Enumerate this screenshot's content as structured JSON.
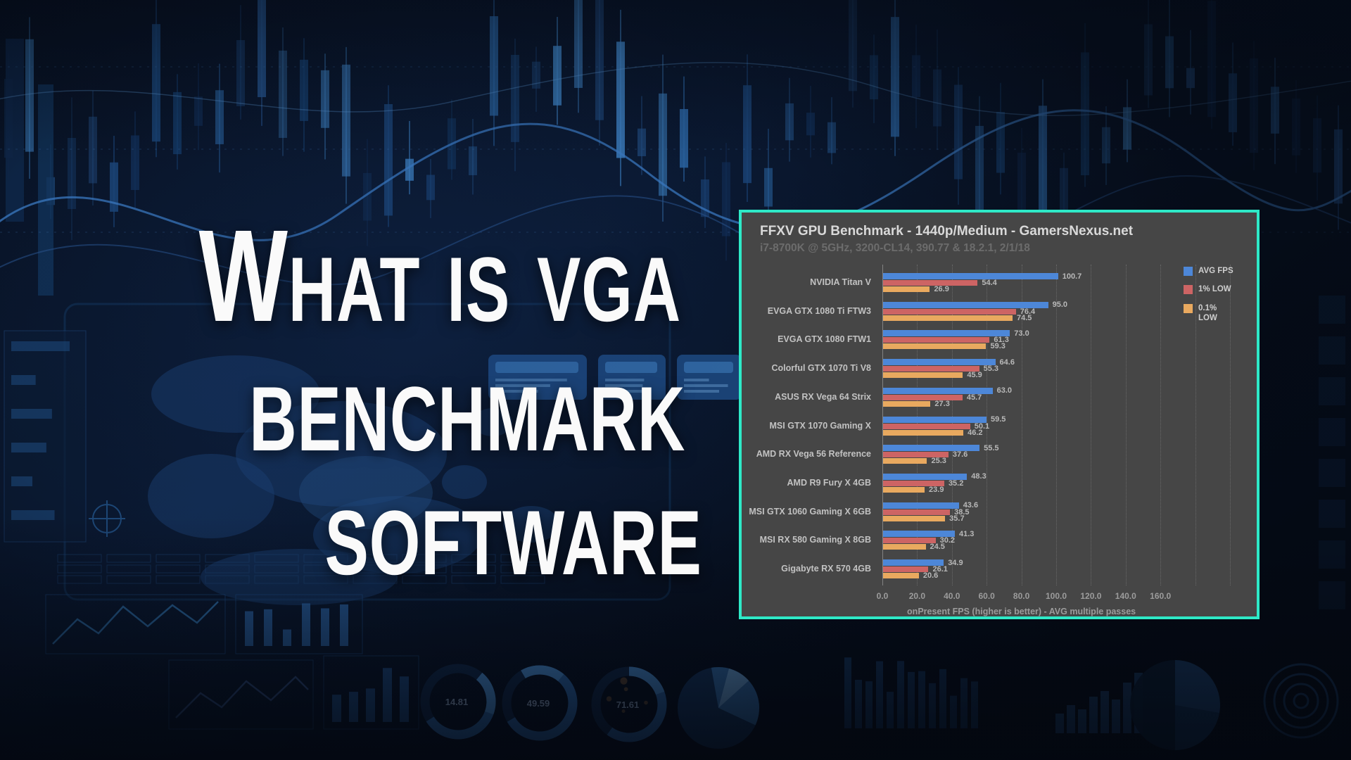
{
  "page": {
    "title_lines": [
      "What is vga",
      "benchmark",
      "software"
    ]
  },
  "chart": {
    "border_color": "#2ee9c7",
    "background": "#464646",
    "legend": [
      {
        "label": "AVG FPS",
        "color": "#4d87d8"
      },
      {
        "label": "1% LOW",
        "color": "#cd6464"
      },
      {
        "label": "0.1% LOW",
        "color": "#e9a95f"
      }
    ]
  },
  "chart_data": {
    "type": "bar",
    "orientation": "horizontal",
    "title": "FFXV GPU Benchmark - 1440p/Medium - GamersNexus.net",
    "subtitle": "i7-8700K @ 5GHz, 3200-CL14, 390.77 & 18.2.1, 2/1/18",
    "categories": [
      "NVIDIA Titan V",
      "EVGA GTX 1080 Ti FTW3",
      "EVGA GTX 1080 FTW1",
      "Colorful GTX 1070 Ti V8",
      "ASUS RX Vega 64 Strix",
      "MSI GTX 1070 Gaming X",
      "AMD RX Vega 56 Reference",
      "AMD R9 Fury X 4GB",
      "MSI GTX 1060 Gaming X 6GB",
      "MSI RX 580 Gaming X 8GB",
      "Gigabyte RX 570 4GB"
    ],
    "series": [
      {
        "name": "AVG FPS",
        "color": "#4d87d8",
        "values": [
          100.7,
          95.0,
          73.0,
          64.6,
          63.0,
          59.5,
          55.5,
          48.3,
          43.6,
          41.3,
          34.9
        ]
      },
      {
        "name": "1% LOW",
        "color": "#cd6464",
        "values": [
          54.4,
          76.4,
          61.3,
          55.3,
          45.7,
          50.1,
          37.6,
          35.2,
          38.5,
          30.2,
          26.1
        ]
      },
      {
        "name": "0.1% LOW",
        "color": "#e9a95f",
        "values": [
          26.9,
          74.5,
          59.3,
          45.9,
          27.3,
          46.2,
          25.3,
          23.9,
          35.7,
          24.5,
          20.6
        ]
      }
    ],
    "xlabel": "onPresent FPS (higher is better) - AVG multiple passes",
    "x_ticks": [
      0,
      20,
      40,
      60,
      80,
      100,
      120,
      140,
      160
    ],
    "xlim": [
      0,
      160
    ],
    "grid": true,
    "legend_position": "top-right"
  },
  "decor": {
    "gauge_values": [
      "14.81",
      "49.59",
      "71.61"
    ]
  }
}
